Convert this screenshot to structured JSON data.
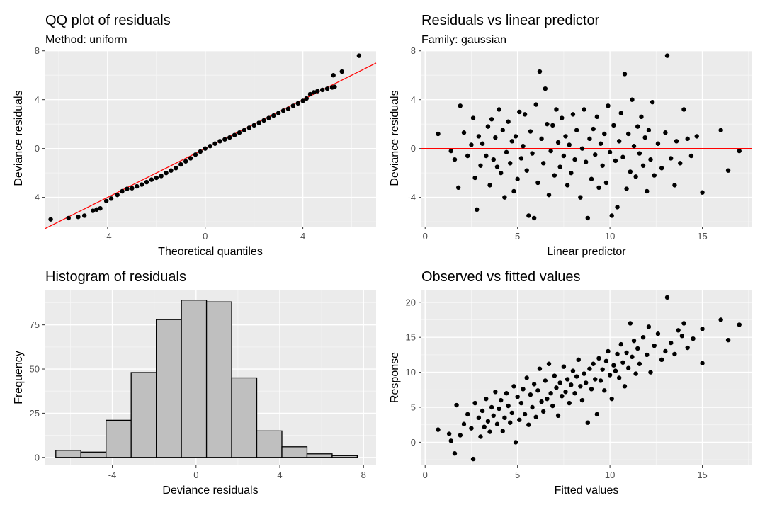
{
  "chart_data": [
    {
      "id": "qq",
      "type": "scatter",
      "title": "QQ plot of residuals",
      "subtitle": "Method: uniform",
      "xlabel": "Theoretical quantiles",
      "ylabel": "Deviance residuals",
      "xlim": [
        -6.55,
        7.0
      ],
      "ylim": [
        -6.4,
        8.1
      ],
      "xticks": [
        -4,
        0,
        4
      ],
      "yticks": [
        -4,
        0,
        4,
        8
      ],
      "grid": true,
      "reference_line": {
        "intercept": 0,
        "slope": 1.0,
        "color": "#ff0000"
      },
      "points": [
        [
          -6.33,
          -5.8
        ],
        [
          -5.6,
          -5.7
        ],
        [
          -5.2,
          -5.6
        ],
        [
          -4.95,
          -5.5
        ],
        [
          -4.6,
          -5.1
        ],
        [
          -4.45,
          -5.0
        ],
        [
          -4.3,
          -4.9
        ],
        [
          -4.05,
          -4.3
        ],
        [
          -3.85,
          -4.1
        ],
        [
          -3.6,
          -3.8
        ],
        [
          -3.4,
          -3.5
        ],
        [
          -3.2,
          -3.3
        ],
        [
          -3.0,
          -3.25
        ],
        [
          -2.8,
          -3.1
        ],
        [
          -2.6,
          -2.95
        ],
        [
          -2.4,
          -2.75
        ],
        [
          -2.2,
          -2.55
        ],
        [
          -2.0,
          -2.4
        ],
        [
          -1.8,
          -2.25
        ],
        [
          -1.6,
          -2.0
        ],
        [
          -1.4,
          -1.8
        ],
        [
          -1.2,
          -1.6
        ],
        [
          -1.0,
          -1.3
        ],
        [
          -0.8,
          -1.05
        ],
        [
          -0.6,
          -0.8
        ],
        [
          -0.4,
          -0.5
        ],
        [
          -0.2,
          -0.25
        ],
        [
          0.0,
          0.0
        ],
        [
          0.2,
          0.2
        ],
        [
          0.4,
          0.4
        ],
        [
          0.6,
          0.6
        ],
        [
          0.8,
          0.75
        ],
        [
          1.0,
          0.9
        ],
        [
          1.2,
          1.1
        ],
        [
          1.4,
          1.3
        ],
        [
          1.6,
          1.5
        ],
        [
          1.8,
          1.7
        ],
        [
          2.0,
          1.9
        ],
        [
          2.2,
          2.1
        ],
        [
          2.4,
          2.3
        ],
        [
          2.6,
          2.5
        ],
        [
          2.8,
          2.7
        ],
        [
          3.0,
          2.9
        ],
        [
          3.2,
          3.1
        ],
        [
          3.4,
          3.25
        ],
        [
          3.6,
          3.5
        ],
        [
          3.8,
          3.7
        ],
        [
          4.0,
          3.9
        ],
        [
          4.15,
          4.1
        ],
        [
          4.3,
          4.45
        ],
        [
          4.45,
          4.6
        ],
        [
          4.6,
          4.7
        ],
        [
          4.8,
          4.8
        ],
        [
          5.0,
          4.9
        ],
        [
          5.2,
          5.0
        ],
        [
          5.3,
          5.05
        ],
        [
          5.25,
          6.0
        ],
        [
          5.6,
          6.3
        ],
        [
          6.3,
          7.6
        ]
      ]
    },
    {
      "id": "resid-vs-lp",
      "type": "scatter",
      "title": "Residuals vs linear predictor",
      "subtitle": "Family: gaussian",
      "xlabel": "Linear predictor",
      "ylabel": "Deviance residuals",
      "xlim": [
        -0.2,
        17.7
      ],
      "ylim": [
        -6.4,
        8.1
      ],
      "xticks": [
        0,
        5,
        10,
        15
      ],
      "yticks": [
        -4,
        0,
        4,
        8
      ],
      "grid": true,
      "reference_line": {
        "y": 0,
        "color": "#ff0000"
      },
      "points": [
        [
          0.7,
          1.2
        ],
        [
          1.4,
          -0.2
        ],
        [
          1.6,
          -0.9
        ],
        [
          1.8,
          -3.2
        ],
        [
          1.9,
          3.5
        ],
        [
          2.1,
          1.3
        ],
        [
          2.3,
          -0.6
        ],
        [
          2.5,
          0.3
        ],
        [
          2.6,
          2.5
        ],
        [
          2.7,
          -2.4
        ],
        [
          2.8,
          -5.0
        ],
        [
          2.9,
          1.0
        ],
        [
          3.0,
          -1.4
        ],
        [
          3.1,
          0.4
        ],
        [
          3.3,
          -0.6
        ],
        [
          3.4,
          1.8
        ],
        [
          3.5,
          -3.0
        ],
        [
          3.6,
          2.4
        ],
        [
          3.7,
          -0.9
        ],
        [
          3.8,
          0.9
        ],
        [
          3.9,
          -1.5
        ],
        [
          4.0,
          3.2
        ],
        [
          4.1,
          -2.0
        ],
        [
          4.2,
          1.5
        ],
        [
          4.3,
          -4.0
        ],
        [
          4.4,
          -0.3
        ],
        [
          4.5,
          2.2
        ],
        [
          4.6,
          -1.2
        ],
        [
          4.7,
          0.6
        ],
        [
          4.8,
          -3.5
        ],
        [
          4.9,
          1.0
        ],
        [
          5.0,
          -2.5
        ],
        [
          5.1,
          3.0
        ],
        [
          5.2,
          -0.8
        ],
        [
          5.3,
          0.2
        ],
        [
          5.4,
          2.8
        ],
        [
          5.5,
          -1.8
        ],
        [
          5.6,
          -5.5
        ],
        [
          5.7,
          1.4
        ],
        [
          5.8,
          -0.4
        ],
        [
          5.9,
          -5.7
        ],
        [
          6.0,
          3.6
        ],
        [
          6.1,
          -2.8
        ],
        [
          6.2,
          6.3
        ],
        [
          6.3,
          0.8
        ],
        [
          6.4,
          -1.2
        ],
        [
          6.5,
          4.9
        ],
        [
          6.6,
          2.0
        ],
        [
          6.7,
          -3.8
        ],
        [
          6.8,
          -0.2
        ],
        [
          6.9,
          1.9
        ],
        [
          7.0,
          -2.2
        ],
        [
          7.1,
          3.2
        ],
        [
          7.2,
          0.5
        ],
        [
          7.3,
          -1.5
        ],
        [
          7.4,
          2.5
        ],
        [
          7.5,
          -0.6
        ],
        [
          7.6,
          1.0
        ],
        [
          7.7,
          -3.0
        ],
        [
          7.8,
          0.3
        ],
        [
          7.9,
          -2.0
        ],
        [
          8.0,
          2.8
        ],
        [
          8.1,
          -0.9
        ],
        [
          8.2,
          1.5
        ],
        [
          8.4,
          -4.0
        ],
        [
          8.5,
          0.0
        ],
        [
          8.6,
          3.2
        ],
        [
          8.7,
          -1.1
        ],
        [
          8.8,
          -5.7
        ],
        [
          8.9,
          0.8
        ],
        [
          9.0,
          -2.5
        ],
        [
          9.1,
          1.6
        ],
        [
          9.2,
          -0.5
        ],
        [
          9.3,
          2.6
        ],
        [
          9.4,
          -3.2
        ],
        [
          9.5,
          0.4
        ],
        [
          9.6,
          -1.4
        ],
        [
          9.7,
          1.2
        ],
        [
          9.8,
          -2.8
        ],
        [
          9.9,
          3.5
        ],
        [
          10.0,
          -0.3
        ],
        [
          10.1,
          -5.5
        ],
        [
          10.2,
          1.9
        ],
        [
          10.3,
          -1.0
        ],
        [
          10.4,
          -4.8
        ],
        [
          10.5,
          0.6
        ],
        [
          10.6,
          2.9
        ],
        [
          10.7,
          -0.7
        ],
        [
          10.8,
          6.1
        ],
        [
          10.9,
          -3.3
        ],
        [
          11.0,
          1.2
        ],
        [
          11.1,
          -1.9
        ],
        [
          11.2,
          4.0
        ],
        [
          11.3,
          0.2
        ],
        [
          11.4,
          -2.3
        ],
        [
          11.5,
          1.8
        ],
        [
          11.6,
          -0.4
        ],
        [
          11.7,
          2.6
        ],
        [
          11.8,
          -1.4
        ],
        [
          11.9,
          0.9
        ],
        [
          12.0,
          -3.5
        ],
        [
          12.1,
          1.5
        ],
        [
          12.2,
          -0.9
        ],
        [
          12.3,
          3.8
        ],
        [
          12.4,
          -2.2
        ],
        [
          12.6,
          0.4
        ],
        [
          12.8,
          -1.6
        ],
        [
          13.0,
          1.3
        ],
        [
          13.1,
          7.6
        ],
        [
          13.3,
          -0.8
        ],
        [
          13.5,
          -3.0
        ],
        [
          13.6,
          0.6
        ],
        [
          13.8,
          -1.2
        ],
        [
          14.0,
          3.2
        ],
        [
          14.2,
          0.8
        ],
        [
          14.4,
          -0.6
        ],
        [
          14.7,
          1.0
        ],
        [
          15.0,
          -3.6
        ],
        [
          16.0,
          1.5
        ],
        [
          16.4,
          -1.8
        ],
        [
          17.0,
          -0.2
        ]
      ]
    },
    {
      "id": "hist",
      "type": "bar",
      "title": "Histogram of residuals",
      "xlabel": "Deviance residuals",
      "ylabel": "Frequency",
      "xlim": [
        -7.2,
        8.6
      ],
      "ylim": [
        -4.5,
        94.5
      ],
      "xticks": [
        -4,
        0,
        4,
        8
      ],
      "yticks": [
        0,
        25,
        50,
        75
      ],
      "grid": true,
      "bin_width": 1.2,
      "bins": [
        {
          "x0": -6.7,
          "x1": -5.5,
          "count": 4
        },
        {
          "x0": -5.5,
          "x1": -4.3,
          "count": 3
        },
        {
          "x0": -4.3,
          "x1": -3.1,
          "count": 21
        },
        {
          "x0": -3.1,
          "x1": -1.9,
          "count": 48
        },
        {
          "x0": -1.9,
          "x1": -0.7,
          "count": 78
        },
        {
          "x0": -0.7,
          "x1": 0.5,
          "count": 89
        },
        {
          "x0": 0.5,
          "x1": 1.7,
          "count": 88
        },
        {
          "x0": 1.7,
          "x1": 2.9,
          "count": 45
        },
        {
          "x0": 2.9,
          "x1": 4.1,
          "count": 15
        },
        {
          "x0": 4.1,
          "x1": 5.3,
          "count": 6
        },
        {
          "x0": 5.3,
          "x1": 6.5,
          "count": 2
        },
        {
          "x0": 6.5,
          "x1": 7.7,
          "count": 1
        }
      ],
      "bar_fill": "#bfbfbf",
      "bar_stroke": "#000000"
    },
    {
      "id": "obs-vs-fit",
      "type": "scatter",
      "title": "Observed vs fitted values",
      "xlabel": "Fitted values",
      "ylabel": "Response",
      "xlim": [
        -0.2,
        17.7
      ],
      "ylim": [
        -3.3,
        21.7
      ],
      "xticks": [
        0,
        5,
        10,
        15
      ],
      "yticks": [
        0,
        5,
        10,
        15,
        20
      ],
      "grid": true,
      "points": [
        [
          0.7,
          1.8
        ],
        [
          1.3,
          1.2
        ],
        [
          1.4,
          0.2
        ],
        [
          1.6,
          -1.6
        ],
        [
          1.7,
          5.3
        ],
        [
          1.9,
          1.0
        ],
        [
          2.1,
          2.6
        ],
        [
          2.3,
          4.0
        ],
        [
          2.5,
          2.0
        ],
        [
          2.6,
          -2.4
        ],
        [
          2.7,
          5.6
        ],
        [
          2.9,
          3.5
        ],
        [
          3.0,
          0.8
        ],
        [
          3.1,
          4.5
        ],
        [
          3.2,
          2.2
        ],
        [
          3.3,
          6.2
        ],
        [
          3.4,
          3.0
        ],
        [
          3.5,
          1.5
        ],
        [
          3.6,
          5.0
        ],
        [
          3.7,
          3.8
        ],
        [
          3.8,
          7.2
        ],
        [
          3.9,
          2.6
        ],
        [
          4.0,
          4.8
        ],
        [
          4.1,
          6.0
        ],
        [
          4.2,
          1.6
        ],
        [
          4.3,
          3.5
        ],
        [
          4.4,
          7.0
        ],
        [
          4.5,
          5.2
        ],
        [
          4.6,
          2.8
        ],
        [
          4.7,
          4.2
        ],
        [
          4.8,
          8.0
        ],
        [
          4.9,
          0.0
        ],
        [
          5.0,
          6.5
        ],
        [
          5.1,
          3.2
        ],
        [
          5.2,
          5.6
        ],
        [
          5.3,
          7.6
        ],
        [
          5.4,
          4.0
        ],
        [
          5.5,
          9.2
        ],
        [
          5.6,
          2.5
        ],
        [
          5.7,
          6.8
        ],
        [
          5.8,
          5.0
        ],
        [
          5.9,
          8.3
        ],
        [
          6.0,
          3.6
        ],
        [
          6.1,
          7.4
        ],
        [
          6.2,
          10.5
        ],
        [
          6.3,
          5.8
        ],
        [
          6.4,
          4.4
        ],
        [
          6.5,
          8.8
        ],
        [
          6.6,
          6.2
        ],
        [
          6.7,
          11.2
        ],
        [
          6.8,
          7.0
        ],
        [
          6.9,
          5.2
        ],
        [
          7.0,
          9.5
        ],
        [
          7.1,
          7.8
        ],
        [
          7.2,
          3.8
        ],
        [
          7.3,
          8.5
        ],
        [
          7.4,
          6.6
        ],
        [
          7.5,
          10.8
        ],
        [
          7.6,
          7.2
        ],
        [
          7.7,
          9.0
        ],
        [
          7.8,
          5.6
        ],
        [
          7.9,
          8.2
        ],
        [
          8.0,
          10.2
        ],
        [
          8.1,
          7.0
        ],
        [
          8.2,
          9.4
        ],
        [
          8.3,
          11.8
        ],
        [
          8.4,
          8.0
        ],
        [
          8.5,
          6.0
        ],
        [
          8.6,
          9.8
        ],
        [
          8.7,
          8.5
        ],
        [
          8.8,
          2.8
        ],
        [
          8.9,
          10.5
        ],
        [
          9.0,
          7.6
        ],
        [
          9.1,
          11.2
        ],
        [
          9.2,
          9.0
        ],
        [
          9.3,
          4.0
        ],
        [
          9.4,
          12.0
        ],
        [
          9.5,
          8.8
        ],
        [
          9.6,
          10.4
        ],
        [
          9.7,
          7.4
        ],
        [
          9.8,
          11.6
        ],
        [
          9.9,
          13.0
        ],
        [
          10.0,
          9.6
        ],
        [
          10.1,
          6.2
        ],
        [
          10.2,
          11.0
        ],
        [
          10.3,
          10.2
        ],
        [
          10.4,
          12.6
        ],
        [
          10.5,
          9.2
        ],
        [
          10.6,
          14.0
        ],
        [
          10.7,
          11.4
        ],
        [
          10.8,
          8.0
        ],
        [
          10.9,
          12.8
        ],
        [
          11.0,
          10.6
        ],
        [
          11.1,
          17.0
        ],
        [
          11.2,
          12.2
        ],
        [
          11.3,
          14.5
        ],
        [
          11.4,
          9.8
        ],
        [
          11.5,
          13.4
        ],
        [
          11.6,
          11.2
        ],
        [
          11.8,
          15.0
        ],
        [
          12.0,
          12.5
        ],
        [
          12.1,
          16.5
        ],
        [
          12.2,
          10.0
        ],
        [
          12.4,
          13.8
        ],
        [
          12.6,
          15.5
        ],
        [
          12.8,
          11.8
        ],
        [
          13.0,
          13.0
        ],
        [
          13.1,
          20.7
        ],
        [
          13.3,
          14.2
        ],
        [
          13.5,
          12.6
        ],
        [
          13.7,
          16.0
        ],
        [
          13.9,
          15.2
        ],
        [
          14.0,
          17.0
        ],
        [
          14.2,
          13.5
        ],
        [
          14.5,
          14.8
        ],
        [
          15.0,
          16.2
        ],
        [
          15.0,
          11.3
        ],
        [
          16.0,
          17.5
        ],
        [
          16.4,
          14.6
        ],
        [
          17.0,
          16.8
        ]
      ]
    }
  ]
}
